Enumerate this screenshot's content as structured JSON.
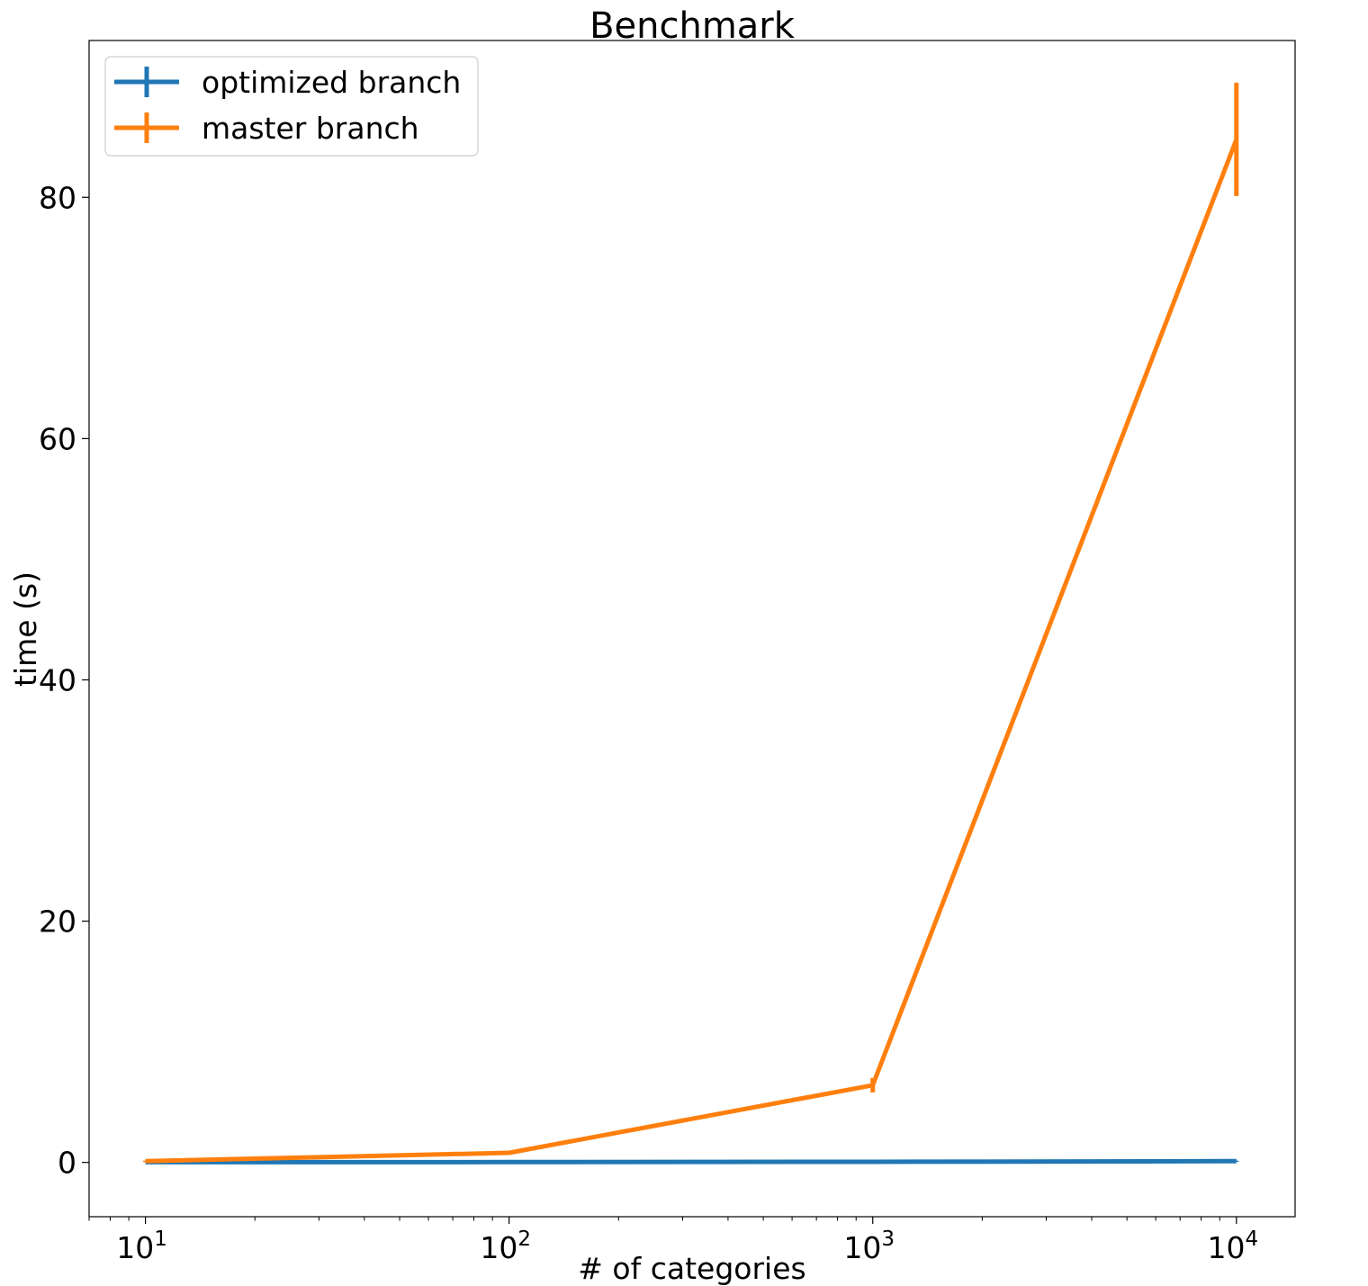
{
  "chart_data": {
    "type": "line",
    "title": "Benchmark",
    "xlabel": "# of categories",
    "ylabel": "time (s)",
    "xscale": "log",
    "x": [
      10,
      100,
      1000,
      10000
    ],
    "xlim": [
      7,
      14500
    ],
    "ylim": [
      -4.5,
      93
    ],
    "xticks": [
      {
        "value": 10,
        "base": "10",
        "exp": "1"
      },
      {
        "value": 100,
        "base": "10",
        "exp": "2"
      },
      {
        "value": 1000,
        "base": "10",
        "exp": "3"
      },
      {
        "value": 10000,
        "base": "10",
        "exp": "4"
      }
    ],
    "yticks": [
      0,
      20,
      40,
      60,
      80
    ],
    "grid": false,
    "legend_position": "top-left",
    "series": [
      {
        "name": "optimized branch",
        "color": "#1f77b4",
        "values": [
          0.02,
          0.03,
          0.05,
          0.1
        ],
        "errors": [
          0.01,
          0.01,
          0.02,
          0.05
        ]
      },
      {
        "name": "master branch",
        "color": "#ff7f0e",
        "values": [
          0.1,
          0.8,
          6.4,
          84.8
        ],
        "errors": [
          0.05,
          0.1,
          0.6,
          4.7
        ]
      }
    ]
  }
}
